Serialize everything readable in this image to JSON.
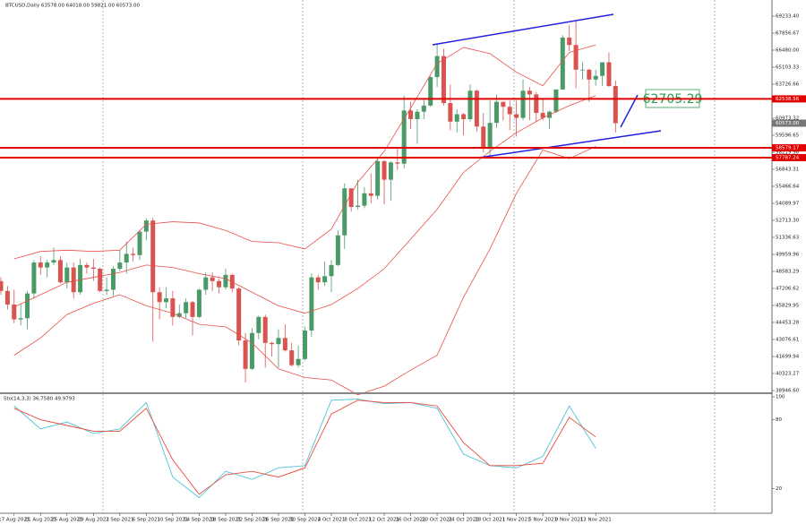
{
  "chart_data": [
    {
      "type": "candlestick",
      "title": "BTCUSD,Daily  63578.00 64018.00 59821.00 60573.00",
      "categories": [
        null,
        null,
        "17 Aug 2021",
        null,
        null,
        null,
        "21 Aug 2021",
        null,
        null,
        null,
        "25 Aug 2021",
        null,
        null,
        null,
        "29 Aug 2021",
        null,
        null,
        null,
        "2 Sep 2021",
        null,
        null,
        null,
        "6 Sep 2021",
        null,
        null,
        null,
        "10 Sep 2021",
        null,
        null,
        null,
        "14 Sep 2021",
        null,
        null,
        null,
        "18 Sep 2021",
        null,
        null,
        null,
        "22 Sep 2021",
        null,
        null,
        null,
        "26 Sep 2021",
        null,
        null,
        null,
        "30 Sep 2021",
        null,
        null,
        null,
        "4 Oct 2021",
        null,
        null,
        null,
        "8 Oct 2021",
        null,
        null,
        null,
        "12 Oct 2021",
        null,
        null,
        null,
        "16 Oct 2021",
        null,
        null,
        null,
        "20 Oct 2021",
        null,
        null,
        null,
        "24 Oct 2021",
        null,
        null,
        null,
        "28 Oct 2021",
        null,
        null,
        null,
        "1 Nov 2021",
        null,
        null,
        null,
        "5 Nov 2021",
        null,
        null,
        null,
        "9 Nov 2021",
        null,
        null,
        null,
        "13 Nov 2021",
        null,
        null,
        null
      ],
      "open": [
        47800,
        47000,
        45900,
        44700,
        44800,
        46800,
        49300,
        48900,
        49300,
        49500,
        47700,
        48900,
        46900,
        49100,
        48900,
        48800,
        47000,
        47100,
        48800,
        49300,
        50000,
        49900,
        51800,
        52700,
        46900,
        46100,
        46400,
        44900,
        45200,
        46100,
        44900,
        47100,
        48100,
        47800,
        47300,
        48300,
        47200,
        43000,
        40700,
        43600,
        44900,
        42800,
        42700,
        43200,
        42200,
        41000,
        41500,
        43800,
        48100,
        47700,
        48200,
        49100,
        51500,
        55300,
        53800,
        53900,
        54900,
        54700,
        57500,
        56000,
        57400,
        57300,
        61600,
        60900,
        61500,
        62000,
        64300,
        66000,
        62200,
        60700,
        61300,
        60900,
        63200,
        60300,
        58500,
        60600,
        62300,
        61900,
        61300,
        61000,
        63200,
        62900,
        61400,
        61000,
        61500,
        63300,
        67500,
        66900,
        64900,
        64900,
        64100,
        64400,
        65500,
        63578
      ],
      "high": [
        48100,
        47400,
        47100,
        46000,
        47000,
        49500,
        49800,
        49500,
        50500,
        49800,
        49300,
        49300,
        49600,
        49300,
        49600,
        48900,
        48100,
        49000,
        50300,
        51000,
        50500,
        51900,
        52900,
        52900,
        47300,
        47300,
        47000,
        45900,
        46400,
        46200,
        47200,
        48500,
        48500,
        48000,
        48800,
        48400,
        47300,
        43600,
        44000,
        45000,
        45100,
        42900,
        43900,
        44300,
        42800,
        42600,
        44100,
        48400,
        48300,
        49400,
        49500,
        51900,
        55700,
        55300,
        56000,
        55400,
        56500,
        57800,
        57600,
        57500,
        58500,
        62800,
        62300,
        61700,
        62600,
        64400,
        67000,
        66600,
        63700,
        61700,
        61400,
        63700,
        63300,
        61400,
        62400,
        62900,
        62300,
        62400,
        62400,
        64100,
        63500,
        63100,
        62600,
        61600,
        63300,
        67700,
        68500,
        68900,
        65500,
        65000,
        64900,
        65500,
        66300,
        64018
      ],
      "low": [
        46700,
        45500,
        44400,
        44200,
        43900,
        46400,
        48300,
        48100,
        49100,
        47600,
        47200,
        46400,
        46700,
        48400,
        47800,
        46900,
        46700,
        46600,
        48600,
        48400,
        49400,
        49500,
        51100,
        42900,
        44700,
        45600,
        44200,
        44800,
        44800,
        43400,
        44800,
        46700,
        47000,
        46800,
        47100,
        46900,
        42600,
        39600,
        40600,
        43100,
        40800,
        41700,
        40800,
        42100,
        40900,
        40800,
        41400,
        43300,
        47100,
        47400,
        46900,
        49000,
        50400,
        53400,
        53600,
        53700,
        54100,
        54400,
        54000,
        54300,
        56800,
        56900,
        60100,
        58900,
        60900,
        61900,
        63500,
        62000,
        60000,
        59800,
        59600,
        60700,
        59900,
        58200,
        57800,
        60200,
        60800,
        60000,
        59500,
        60800,
        60800,
        60700,
        60800,
        60100,
        61400,
        63300,
        66400,
        63400,
        64100,
        62300,
        63600,
        63600,
        63500,
        59821
      ],
      "close": [
        47000,
        45900,
        44700,
        44800,
        46800,
        49300,
        48900,
        49300,
        49500,
        47700,
        48900,
        46900,
        49100,
        48900,
        48800,
        47000,
        47100,
        48800,
        49300,
        50000,
        49900,
        51800,
        52700,
        46900,
        46100,
        46400,
        44900,
        45200,
        46100,
        44900,
        47100,
        48100,
        47800,
        47300,
        48300,
        47200,
        43000,
        40700,
        43600,
        44900,
        42800,
        42700,
        43200,
        42200,
        41000,
        41500,
        43800,
        48100,
        47700,
        48200,
        49100,
        51500,
        55300,
        53800,
        53900,
        54900,
        54700,
        57500,
        56000,
        57400,
        57300,
        61600,
        60900,
        61500,
        62000,
        64300,
        66000,
        62200,
        60700,
        61300,
        60900,
        63200,
        60300,
        58500,
        60600,
        62300,
        61900,
        61300,
        61000,
        63200,
        62900,
        61400,
        61000,
        61500,
        63300,
        67500,
        66900,
        64900,
        64900,
        64100,
        64400,
        65500,
        63578,
        60573
      ],
      "up_color": "#4a9a68",
      "down_color": "#d9534f",
      "ylim": [
        38946.6,
        69233.4
      ],
      "yticks": [
        {
          "value": 38946.6,
          "label": "38946.60"
        },
        {
          "value": 40323.27,
          "label": "40323.27"
        },
        {
          "value": 41699.94,
          "label": "41699.94"
        },
        {
          "value": 43076.61,
          "label": "43076.61"
        },
        {
          "value": 44453.28,
          "label": "44453.28"
        },
        {
          "value": 45829.95,
          "label": "45829.95"
        },
        {
          "value": 47206.62,
          "label": "47206.62"
        },
        {
          "value": 48583.29,
          "label": "48583.29"
        },
        {
          "value": 49959.96,
          "label": "49959.96"
        },
        {
          "value": 51336.63,
          "label": "51336.63"
        },
        {
          "value": 52713.3,
          "label": "52713.30"
        },
        {
          "value": 54089.97,
          "label": "54089.97"
        },
        {
          "value": 55466.64,
          "label": "55466.64"
        },
        {
          "value": 56843.31,
          "label": "56843.31"
        },
        {
          "value": 58219.98,
          "label": "58219.98"
        },
        {
          "value": 59596.65,
          "label": "59596.65"
        },
        {
          "value": 60973.32,
          "label": "60973.32"
        },
        {
          "value": 62349.99,
          "label": "62349.99"
        },
        {
          "value": 63726.66,
          "label": "63726.66"
        },
        {
          "value": 65103.33,
          "label": "65103.33"
        },
        {
          "value": 66480,
          "label": "66480.00"
        },
        {
          "value": 67856.67,
          "label": "67856.67"
        },
        {
          "value": 69233.4,
          "label": "69233.40"
        }
      ],
      "bands": {
        "color": "#e8504a",
        "x": [
          "17 Aug 2021",
          "21 Aug 2021",
          "25 Aug 2021",
          "29 Aug 2021",
          "2 Sep 2021",
          "6 Sep 2021",
          "10 Sep 2021",
          "14 Sep 2021",
          "18 Sep 2021",
          "22 Sep 2021",
          "26 Sep 2021",
          "30 Sep 2021",
          "4 Oct 2021",
          "8 Oct 2021",
          "12 Oct 2021",
          "16 Oct 2021",
          "20 Oct 2021",
          "24 Oct 2021",
          "28 Oct 2021",
          "1 Nov 2021",
          "5 Nov 2021",
          "9 Nov 2021",
          "13 Nov 2021"
        ],
        "upper": [
          49600,
          50200,
          50300,
          50200,
          50300,
          52400,
          52600,
          52500,
          51900,
          51000,
          50900,
          50400,
          52000,
          55800,
          58300,
          61800,
          65400,
          66700,
          66200,
          64700,
          63600,
          66300,
          66900
        ],
        "middle": [
          45700,
          46700,
          47700,
          48100,
          48500,
          49100,
          48900,
          48400,
          48000,
          46900,
          45800,
          45200,
          45900,
          47200,
          48800,
          51200,
          53600,
          56600,
          58300,
          59800,
          61000,
          62000,
          62800
        ],
        "lower": [
          41800,
          43200,
          45100,
          46000,
          46700,
          45800,
          45200,
          44300,
          44100,
          42800,
          40700,
          40000,
          39800,
          38600,
          39300,
          40600,
          41800,
          46500,
          50400,
          54900,
          58400,
          57700,
          58700
        ]
      },
      "levels": [
        {
          "value": 62538.56,
          "label": "62538.56",
          "color": "#e00000"
        },
        {
          "value": 58579.17,
          "label": "58579.17",
          "color": "#e00000"
        },
        {
          "value": 57787.24,
          "label": "57787.24",
          "color": "#e00000"
        }
      ],
      "last_price": {
        "value": 60573,
        "label": "60573.00",
        "color": "#777777"
      },
      "annotation": "62705.29"
    },
    {
      "type": "line",
      "title": "Sto(14,3,3) 36.7580 49.9793",
      "x": [
        "17 Aug 2021",
        "21 Aug 2021",
        "25 Aug 2021",
        "29 Aug 2021",
        "2 Sep 2021",
        "6 Sep 2021",
        "10 Sep 2021",
        "14 Sep 2021",
        "18 Sep 2021",
        "22 Sep 2021",
        "26 Sep 2021",
        "30 Sep 2021",
        "4 Oct 2021",
        "8 Oct 2021",
        "12 Oct 2021",
        "16 Oct 2021",
        "20 Oct 2021",
        "24 Oct 2021",
        "28 Oct 2021",
        "1 Nov 2021",
        "5 Nov 2021",
        "9 Nov 2021",
        "13 Nov 2021"
      ],
      "series": [
        {
          "color": "#4fc3d9",
          "values": [
            92,
            72,
            78,
            68,
            72,
            95,
            30,
            12,
            35,
            28,
            38,
            40,
            97,
            98,
            94,
            95,
            90,
            50,
            40,
            38,
            48,
            92,
            55
          ]
        },
        {
          "color": "#e74c3c",
          "values": [
            90,
            80,
            75,
            70,
            70,
            90,
            45,
            15,
            32,
            35,
            30,
            38,
            85,
            97,
            95,
            95,
            92,
            60,
            40,
            40,
            42,
            82,
            65
          ]
        }
      ],
      "ylim": [
        0,
        100
      ],
      "yticks": [
        20,
        80,
        100
      ]
    }
  ]
}
